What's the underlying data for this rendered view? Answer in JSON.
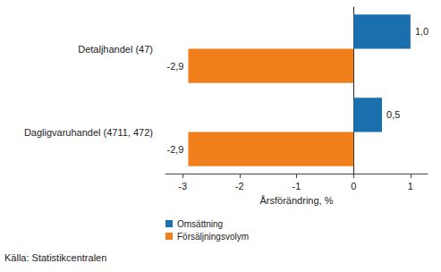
{
  "chart_data": {
    "type": "bar",
    "orientation": "horizontal",
    "categories": [
      "Detaljhandel (47)",
      "Dagligvaruhandel (4711, 472)"
    ],
    "series": [
      {
        "name": "Omsättning",
        "color": "#1a6fae",
        "values": [
          1.0,
          0.5
        ],
        "value_labels": [
          "1,0",
          "0,5"
        ]
      },
      {
        "name": "Försäljningsvolym",
        "color": "#f07f1b",
        "values": [
          -2.9,
          -2.9
        ],
        "value_labels": [
          "-2,9",
          "-2,9"
        ]
      }
    ],
    "xlabel": "Årsförändring, %",
    "xlim": [
      -3.3,
      1.3
    ],
    "xticks": [
      -3,
      -2,
      -1,
      0,
      1
    ],
    "grid": false,
    "legend": "bottom left",
    "data_labels": true,
    "annotations": [
      "Källa: Statistikcentralen"
    ]
  }
}
